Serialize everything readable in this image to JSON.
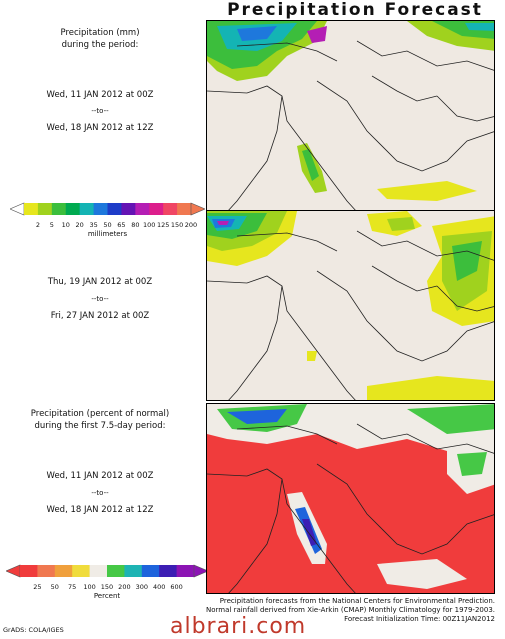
{
  "title": "Precipitation Forecast",
  "panel1": {
    "heading_line1": "Precipitation (mm)",
    "heading_line2": "during the period:",
    "start": "Wed, 11 JAN 2012 at 00Z",
    "to": "--to--",
    "end": "Wed, 18 JAN 2012 at 12Z"
  },
  "colorbar_mm": {
    "ticks": [
      "2",
      "5",
      "10",
      "20",
      "35",
      "50",
      "65",
      "80",
      "100",
      "125",
      "150",
      "200"
    ],
    "unit": "millimeters",
    "colors": [
      "#e6e61e",
      "#a0d21e",
      "#3cbe3c",
      "#00aa50",
      "#14b4b4",
      "#1e78dc",
      "#1e3cc8",
      "#6414b4",
      "#b41eb4",
      "#dc1e8c",
      "#f04664",
      "#f07850"
    ]
  },
  "panel2": {
    "start": "Thu, 19 JAN 2012 at 00Z",
    "to": "--to--",
    "end": "Fri, 27 JAN 2012 at 00Z"
  },
  "panel3": {
    "heading_line1": "Precipitation (percent of normal)",
    "heading_line2": "during the first 7.5-day period:",
    "start": "Wed, 11 JAN 2012 at 00Z",
    "to": "--to--",
    "end": "Wed, 18 JAN 2012 at 12Z"
  },
  "colorbar_pct": {
    "ticks": [
      "25",
      "50",
      "75",
      "100",
      "150",
      "200",
      "300",
      "400",
      "600"
    ],
    "unit": "Percent",
    "colors": [
      "#f03c3c",
      "#f07850",
      "#f0a03c",
      "#f0dc3c",
      "#f0ece6",
      "#46c846",
      "#1eb4b4",
      "#1e64dc",
      "#3c1eb4",
      "#8c14b4"
    ]
  },
  "footer": {
    "line1": "Precipitation forecasts from the National Centers for Environmental Prediction.",
    "line2": "Normal rainfall derived from Xie-Arkin (CMAP) Monthly Climatology for 1979-2003.",
    "line3": "Forecast Initialization Time: 00Z11JAN2012",
    "grads": "GrADS: COLA/IGES",
    "watermark": "albrari.com"
  }
}
